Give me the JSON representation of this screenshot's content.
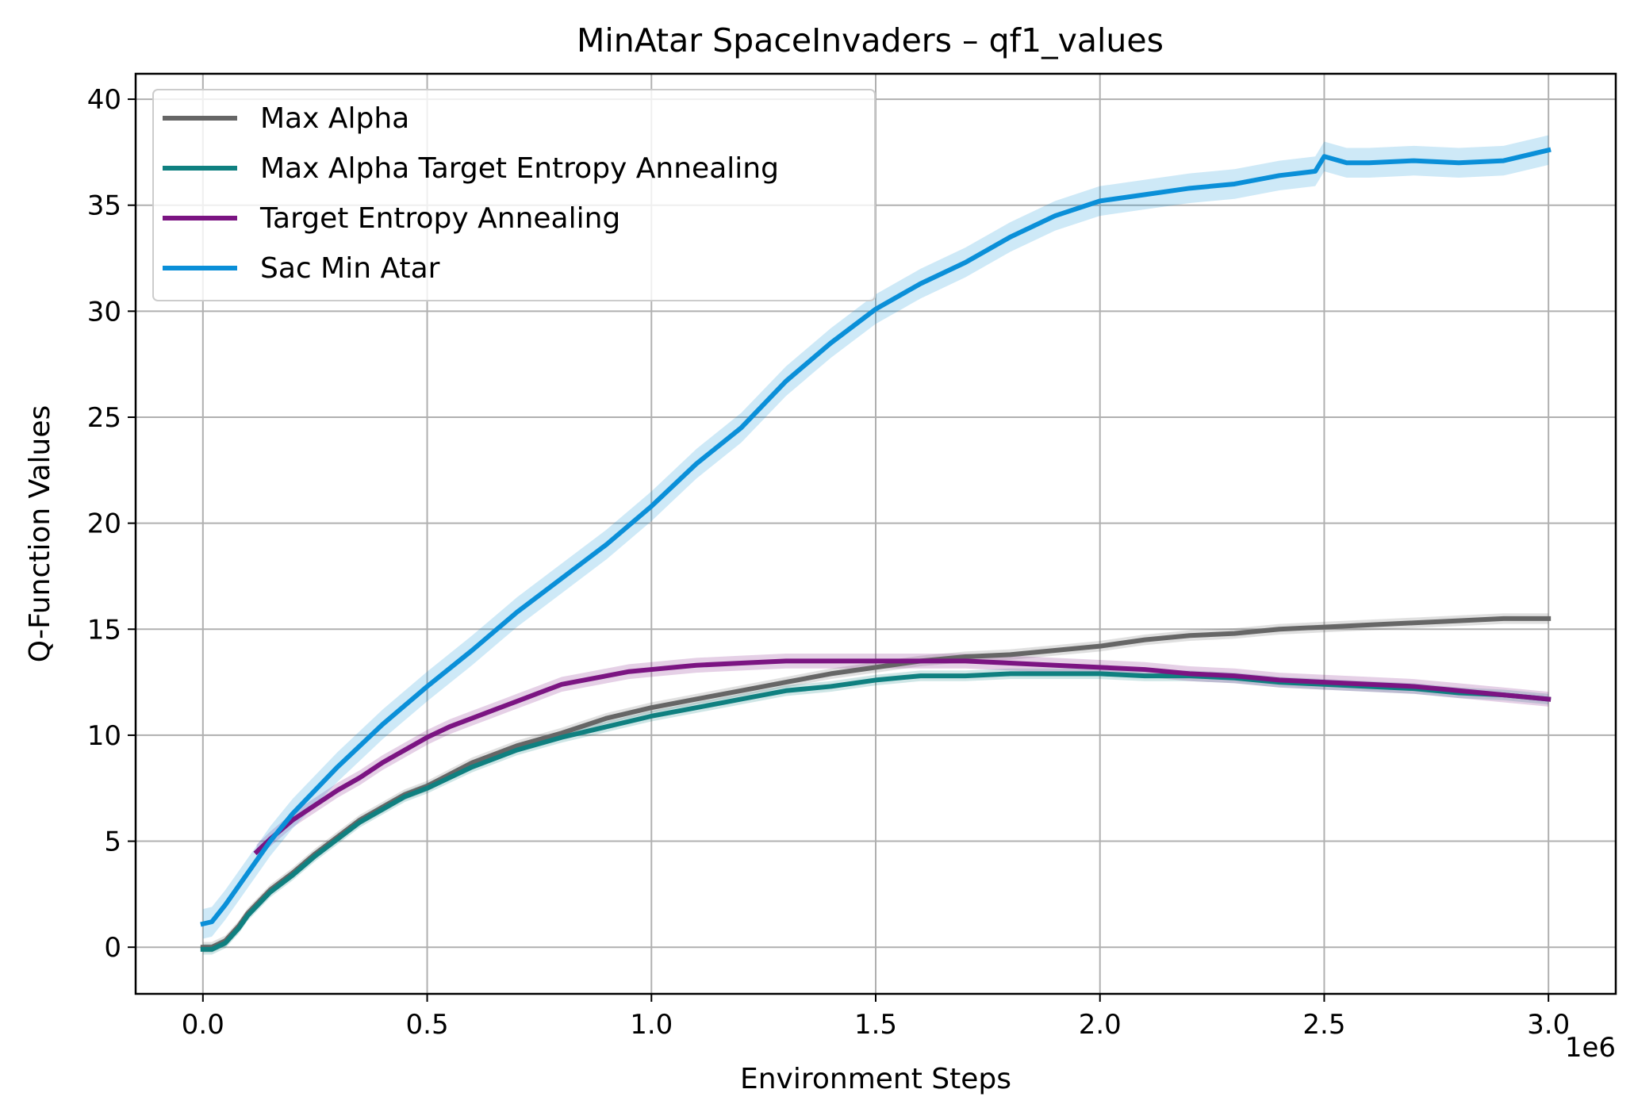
{
  "chart_data": {
    "type": "line",
    "title": "MinAtar SpaceInvaders – qf1_values",
    "xlabel": "Environment Steps",
    "ylabel": "Q-Function Values",
    "x_offset_label": "1e6",
    "xlim": [
      -0.15,
      3.15
    ],
    "ylim": [
      -2.2,
      41.2
    ],
    "xticks": [
      0.0,
      0.5,
      1.0,
      1.5,
      2.0,
      2.5,
      3.0
    ],
    "xtick_labels": [
      "0.0",
      "0.5",
      "1.0",
      "1.5",
      "2.0",
      "2.5",
      "3.0"
    ],
    "yticks": [
      0,
      5,
      10,
      15,
      20,
      25,
      30,
      35,
      40
    ],
    "ytick_labels": [
      "0",
      "5",
      "10",
      "15",
      "20",
      "25",
      "30",
      "35",
      "40"
    ],
    "grid": true,
    "legend_position": "top-left",
    "series": [
      {
        "name": "Max Alpha",
        "color": "#666666",
        "band": 0.25,
        "x": [
          0,
          0.02,
          0.05,
          0.08,
          0.1,
          0.15,
          0.2,
          0.25,
          0.3,
          0.35,
          0.4,
          0.45,
          0.5,
          0.6,
          0.7,
          0.8,
          0.9,
          1.0,
          1.1,
          1.2,
          1.3,
          1.4,
          1.5,
          1.6,
          1.7,
          1.8,
          1.9,
          2.0,
          2.1,
          2.2,
          2.3,
          2.4,
          2.5,
          2.6,
          2.7,
          2.8,
          2.9,
          3.0
        ],
        "y": [
          0.0,
          0.0,
          0.3,
          1.0,
          1.6,
          2.7,
          3.5,
          4.4,
          5.2,
          6.0,
          6.6,
          7.2,
          7.6,
          8.7,
          9.5,
          10.1,
          10.8,
          11.3,
          11.7,
          12.1,
          12.5,
          12.9,
          13.2,
          13.5,
          13.7,
          13.8,
          14.0,
          14.2,
          14.5,
          14.7,
          14.8,
          15.0,
          15.1,
          15.2,
          15.3,
          15.4,
          15.5,
          15.5
        ]
      },
      {
        "name": "Max Alpha Target Entropy Annealing",
        "color": "#0f8080",
        "band": 0.25,
        "x": [
          0,
          0.02,
          0.05,
          0.08,
          0.1,
          0.15,
          0.2,
          0.25,
          0.3,
          0.35,
          0.4,
          0.45,
          0.5,
          0.6,
          0.7,
          0.8,
          0.9,
          1.0,
          1.1,
          1.2,
          1.3,
          1.4,
          1.5,
          1.6,
          1.7,
          1.8,
          1.9,
          2.0,
          2.1,
          2.2,
          2.3,
          2.4,
          2.5,
          2.6,
          2.7,
          2.8,
          2.9,
          3.0
        ],
        "y": [
          -0.1,
          -0.1,
          0.2,
          0.9,
          1.5,
          2.6,
          3.4,
          4.3,
          5.1,
          5.9,
          6.5,
          7.1,
          7.5,
          8.5,
          9.3,
          9.9,
          10.4,
          10.9,
          11.3,
          11.7,
          12.1,
          12.3,
          12.6,
          12.8,
          12.8,
          12.9,
          12.9,
          12.9,
          12.8,
          12.8,
          12.7,
          12.5,
          12.4,
          12.3,
          12.2,
          12.0,
          11.9,
          11.7
        ]
      },
      {
        "name": "Target Entropy Annealing",
        "color": "#7b1482",
        "band": 0.35,
        "x": [
          0.12,
          0.15,
          0.2,
          0.25,
          0.3,
          0.35,
          0.4,
          0.45,
          0.5,
          0.55,
          0.6,
          0.65,
          0.7,
          0.75,
          0.8,
          0.85,
          0.9,
          0.95,
          1.0,
          1.05,
          1.1,
          1.2,
          1.3,
          1.4,
          1.5,
          1.6,
          1.7,
          1.8,
          1.9,
          2.0,
          2.1,
          2.2,
          2.3,
          2.4,
          2.5,
          2.6,
          2.7,
          2.8,
          2.9,
          3.0
        ],
        "y": [
          4.5,
          5.1,
          6.0,
          6.7,
          7.4,
          8.0,
          8.7,
          9.3,
          9.9,
          10.4,
          10.8,
          11.2,
          11.6,
          12.0,
          12.4,
          12.6,
          12.8,
          13.0,
          13.1,
          13.2,
          13.3,
          13.4,
          13.5,
          13.5,
          13.5,
          13.5,
          13.5,
          13.4,
          13.3,
          13.2,
          13.1,
          12.9,
          12.8,
          12.6,
          12.5,
          12.4,
          12.3,
          12.1,
          11.9,
          11.7
        ]
      },
      {
        "name": "Sac Min Atar",
        "color": "#0a8fd8",
        "band": 0.7,
        "x": [
          0,
          0.02,
          0.05,
          0.1,
          0.15,
          0.2,
          0.3,
          0.4,
          0.5,
          0.6,
          0.7,
          0.8,
          0.9,
          1.0,
          1.1,
          1.2,
          1.3,
          1.4,
          1.5,
          1.6,
          1.7,
          1.8,
          1.9,
          2.0,
          2.1,
          2.2,
          2.3,
          2.4,
          2.48,
          2.5,
          2.55,
          2.6,
          2.7,
          2.8,
          2.9,
          3.0
        ],
        "y": [
          1.1,
          1.2,
          2.0,
          3.5,
          5.0,
          6.3,
          8.5,
          10.5,
          12.3,
          14.0,
          15.8,
          17.4,
          19.0,
          20.8,
          22.8,
          24.5,
          26.7,
          28.5,
          30.1,
          31.3,
          32.3,
          33.5,
          34.5,
          35.2,
          35.5,
          35.8,
          36.0,
          36.4,
          36.6,
          37.3,
          37.0,
          37.0,
          37.1,
          37.0,
          37.1,
          37.6
        ]
      }
    ]
  }
}
